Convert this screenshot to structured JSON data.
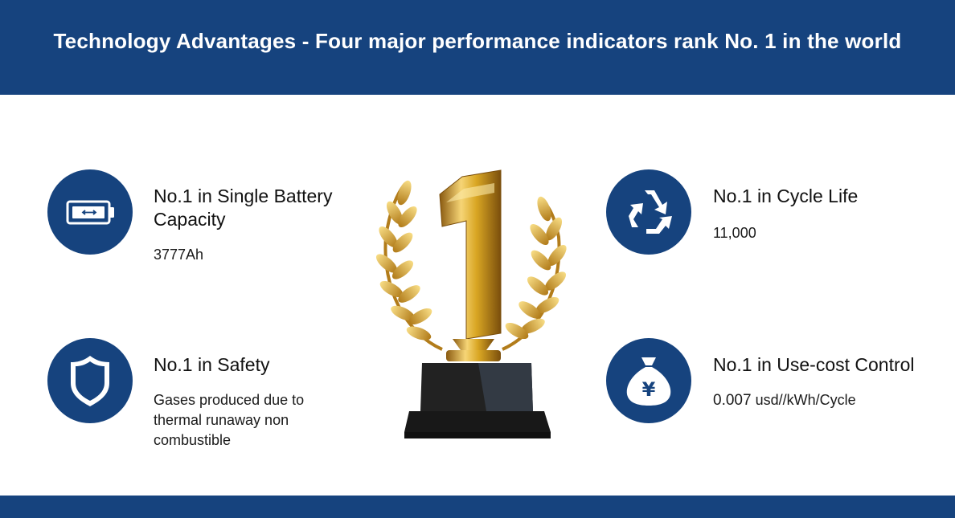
{
  "header": {
    "title": "Technology Advantages - Four major performance indicators rank No. 1 in the world"
  },
  "features": {
    "battery": {
      "icon": "battery-icon",
      "title_line1": "No.1 in Single Battery",
      "title_line2": "Capacity",
      "value": "3777Ah"
    },
    "safety": {
      "icon": "shield-icon",
      "title": "No.1 in Safety",
      "text_line1": "Gases produced due to",
      "text_line2": "thermal runaway non",
      "text_line3": "combustible"
    },
    "cycle": {
      "icon": "recycle-icon",
      "title": "No.1 in Cycle Life",
      "value": "11,000"
    },
    "cost": {
      "icon": "yen-money-bag-icon",
      "title": "No.1 in Use-cost Control",
      "value_number": "0.007",
      "value_unit": "usd//kWh/Cycle"
    }
  },
  "trophy": {
    "icon": "number-one-trophy-icon",
    "numeral": "1"
  },
  "colors": {
    "primary": "#16437e",
    "gold": "#d9a623",
    "base": "#202020"
  }
}
